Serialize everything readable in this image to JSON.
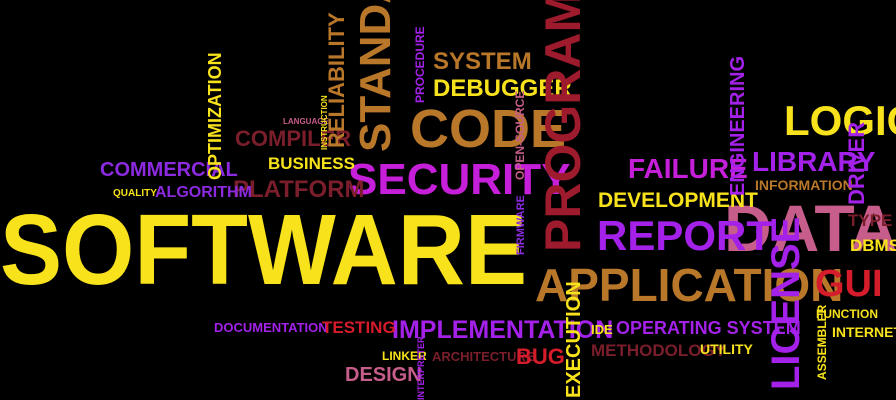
{
  "colors": {
    "background": "#000000",
    "yellow": "#f7e21b",
    "gold": "#b9772a",
    "purple": "#a321e8",
    "violet": "#8c2ae0",
    "magenta": "#c61fd9",
    "red": "#d41c2b",
    "crimson": "#9e1a2d",
    "pink": "#c75d8a",
    "maroon": "#7b1e2c"
  },
  "words": [
    {
      "text": "SOFTWARE",
      "color": "yellow"
    },
    {
      "text": "PROGRAM",
      "color": "crimson"
    },
    {
      "text": "CODE",
      "color": "gold"
    },
    {
      "text": "SECURITY",
      "color": "magenta"
    },
    {
      "text": "STANDARD",
      "color": "gold"
    },
    {
      "text": "APPLICATION",
      "color": "gold"
    },
    {
      "text": "DATA",
      "color": "pink"
    },
    {
      "text": "REPORT",
      "color": "purple"
    },
    {
      "text": "LICENSE",
      "color": "purple"
    },
    {
      "text": "LOGIC",
      "color": "yellow"
    },
    {
      "text": "LIBRARY",
      "color": "purple"
    },
    {
      "text": "FAILURE",
      "color": "magenta"
    },
    {
      "text": "DEVELOPMENT",
      "color": "yellow"
    },
    {
      "text": "IMPLEMENTATION",
      "color": "purple"
    },
    {
      "text": "GUI",
      "color": "red"
    },
    {
      "text": "SYSTEM",
      "color": "gold"
    },
    {
      "text": "DEBUGGER",
      "color": "yellow"
    },
    {
      "text": "PLATFORM",
      "color": "maroon"
    },
    {
      "text": "COMPILER",
      "color": "maroon"
    },
    {
      "text": "BUSINESS",
      "color": "yellow"
    },
    {
      "text": "COMMERCIAL",
      "color": "violet"
    },
    {
      "text": "ALGORITHM",
      "color": "violet"
    },
    {
      "text": "QUALITY",
      "color": "yellow"
    },
    {
      "text": "OPTIMIZATION",
      "color": "yellow"
    },
    {
      "text": "LANGUAGE",
      "color": "pink"
    },
    {
      "text": "INSTRUCTION",
      "color": "yellow"
    },
    {
      "text": "RELIABILITY",
      "color": "gold"
    },
    {
      "text": "PROCEDURE",
      "color": "purple"
    },
    {
      "text": "OPEN-SOURCE",
      "color": "pink"
    },
    {
      "text": "FIRMWARE",
      "color": "violet"
    },
    {
      "text": "ENGINEERING",
      "color": "purple"
    },
    {
      "text": "INFORMATION",
      "color": "gold"
    },
    {
      "text": "DRIVER",
      "color": "purple"
    },
    {
      "text": "TYPE",
      "color": "maroon"
    },
    {
      "text": "DBMS",
      "color": "yellow"
    },
    {
      "text": "DOCUMENTATION",
      "color": "purple"
    },
    {
      "text": "TESTING",
      "color": "red"
    },
    {
      "text": "EXECUTION",
      "color": "yellow"
    },
    {
      "text": "IDE",
      "color": "yellow"
    },
    {
      "text": "OPERATING SYSTEM",
      "color": "purple"
    },
    {
      "text": "METHODOLOGY",
      "color": "maroon"
    },
    {
      "text": "UTILITY",
      "color": "yellow"
    },
    {
      "text": "FUNCTION",
      "color": "yellow"
    },
    {
      "text": "INTERNET",
      "color": "yellow"
    },
    {
      "text": "ASSEMBLER",
      "color": "yellow"
    },
    {
      "text": "LINKER",
      "color": "yellow"
    },
    {
      "text": "ARCHITECTURE",
      "color": "maroon"
    },
    {
      "text": "BUG",
      "color": "red"
    },
    {
      "text": "DESIGN",
      "color": "pink"
    },
    {
      "text": "INTERPRETER",
      "color": "purple"
    }
  ]
}
